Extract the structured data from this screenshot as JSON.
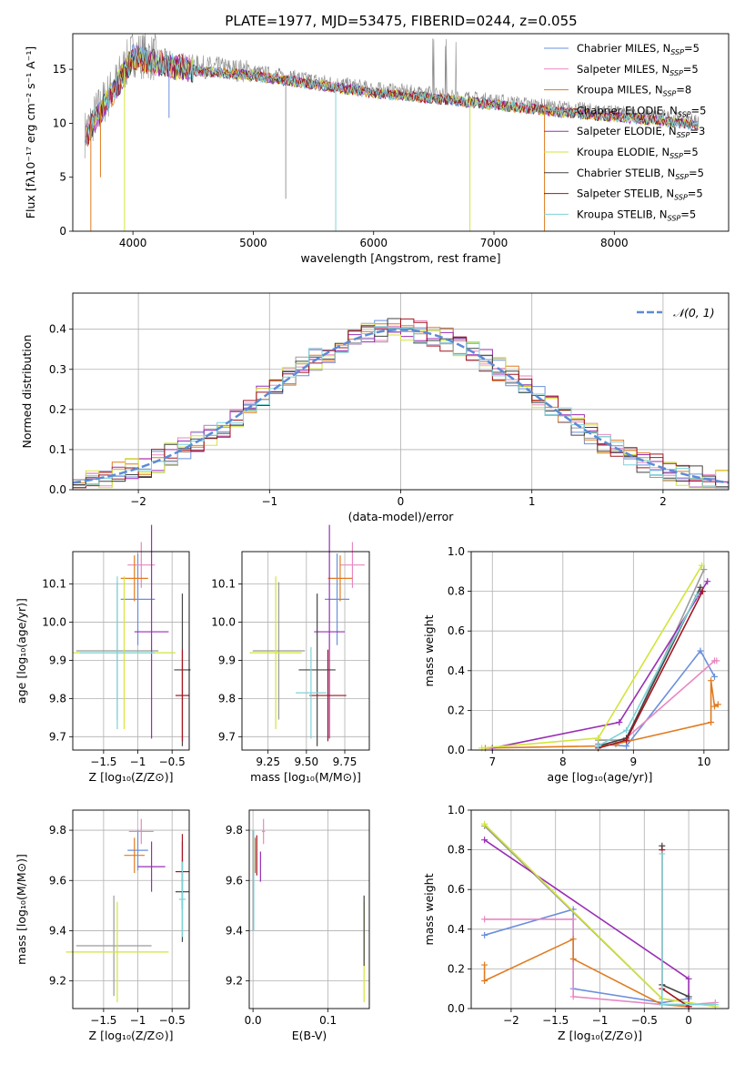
{
  "figure_title": "PLATE=1977, MJD=53475, FIBERID=0244, z=0.055",
  "colors": {
    "Chabrier MILES": "#6a8fdc",
    "Salpeter MILES": "#e887c2",
    "Kroupa MILES": "#e07b1f",
    "Chabrier ELODIE": "#9b9b9b",
    "Salpeter ELODIE": "#9a2eb5",
    "Kroupa ELODIE": "#d2e53a",
    "Chabrier STELIB": "#444444",
    "Salpeter STELIB": "#a3151e",
    "Kroupa STELIB": "#7dd3d8"
  },
  "legend_labels": [
    {
      "name": "Chabrier MILES",
      "pre": "Chabrier MILES, N",
      "sub": "SSP",
      "post": "=5"
    },
    {
      "name": "Salpeter MILES",
      "pre": "Salpeter MILES, N",
      "sub": "SSP",
      "post": "=5"
    },
    {
      "name": "Kroupa MILES",
      "pre": "Kroupa MILES, N",
      "sub": "SSP",
      "post": "=8"
    },
    {
      "name": "Chabrier ELODIE",
      "pre": "Chabrier ELODIE, N",
      "sub": "SSP",
      "post": "=5"
    },
    {
      "name": "Salpeter ELODIE",
      "pre": "Salpeter ELODIE, N",
      "sub": "SSP",
      "post": "=3"
    },
    {
      "name": "Kroupa ELODIE",
      "pre": "Kroupa ELODIE, N",
      "sub": "SSP",
      "post": "=5"
    },
    {
      "name": "Chabrier STELIB",
      "pre": "Chabrier STELIB, N",
      "sub": "SSP",
      "post": "=5"
    },
    {
      "name": "Salpeter STELIB",
      "pre": "Salpeter STELIB, N",
      "sub": "SSP",
      "post": "=5"
    },
    {
      "name": "Kroupa STELIB",
      "pre": "Kroupa STELIB, N",
      "sub": "SSP",
      "post": "=5"
    }
  ],
  "chart_data": [
    {
      "id": "spectrum",
      "type": "line",
      "xlabel": "wavelength [Angstrom, rest frame]",
      "ylabel": "Flux [fλ10⁻¹⁷ erg cm⁻² s⁻¹ A⁻¹]",
      "xlim": [
        3500,
        8950
      ],
      "ylim": [
        0,
        18.3
      ],
      "xticks": [
        4000,
        5000,
        6000,
        7000,
        8000
      ],
      "yticks": [
        0,
        5,
        10,
        15
      ],
      "grid": false,
      "legend": "upper-right",
      "continuum_x": [
        3600,
        3700,
        3850,
        4000,
        4200,
        4500,
        5000,
        5500,
        6000,
        6500,
        7000,
        7500,
        8000,
        8400,
        8700
      ],
      "continuum_y": [
        9.0,
        11.0,
        13.5,
        16.5,
        16.0,
        15.3,
        14.8,
        14.0,
        13.2,
        12.7,
        12.1,
        11.5,
        11.0,
        10.6,
        10.2
      ],
      "absorption_lines": [
        {
          "x": 3650,
          "y": 0.0,
          "series": "Kroupa MILES"
        },
        {
          "x": 3730,
          "y": 5.0,
          "series": "Kroupa MILES"
        },
        {
          "x": 3930,
          "y": 0.0,
          "series": "Kroupa ELODIE"
        },
        {
          "x": 4300,
          "y": 10.5,
          "series": "Chabrier MILES"
        },
        {
          "x": 5270,
          "y": 3.0,
          "series": "Chabrier ELODIE"
        },
        {
          "x": 5685,
          "y": 0.0,
          "series": "Kroupa STELIB"
        },
        {
          "x": 6800,
          "y": 0.0,
          "series": "Kroupa ELODIE"
        },
        {
          "x": 7420,
          "y": 0.0,
          "series": "Kroupa MILES"
        }
      ]
    },
    {
      "id": "residuals",
      "type": "line",
      "xlabel": "(data-model)/error",
      "ylabel": "Normed distribution",
      "xlim": [
        -2.5,
        2.5
      ],
      "ylim": [
        0,
        0.49
      ],
      "xticks": [
        -2,
        -1,
        0,
        1,
        2
      ],
      "yticks": [
        0.0,
        0.1,
        0.2,
        0.3,
        0.4
      ],
      "grid": true,
      "legend": "upper-right",
      "reference_label": "𝒩(0, 1)",
      "series_curve": "N(0,1)"
    },
    {
      "id": "age-vs-Z",
      "type": "scatter",
      "xlabel": "Z [log₁₀(Z/Z⊙)]",
      "ylabel": "age  [log₁₀(age/yr)]",
      "xlim": [
        -1.95,
        -0.25
      ],
      "ylim": [
        9.665,
        10.185
      ],
      "xticks": [
        -1.5,
        -1.0,
        -0.5
      ],
      "yticks": [
        9.7,
        9.8,
        9.9,
        10.0,
        10.1
      ],
      "grid": true,
      "points": [
        {
          "series": "Chabrier MILES",
          "x": -1.0,
          "y": 10.06,
          "xerr": 0.25,
          "yerr": 0.12
        },
        {
          "series": "Salpeter MILES",
          "x": -0.95,
          "y": 10.15,
          "xerr": 0.2,
          "yerr": 0.06
        },
        {
          "series": "Kroupa MILES",
          "x": -1.05,
          "y": 10.115,
          "xerr": 0.2,
          "yerr": 0.06
        },
        {
          "series": "Chabrier ELODIE",
          "x": -1.3,
          "y": 9.925,
          "xerr": 0.6,
          "yerr": 0.18
        },
        {
          "series": "Salpeter ELODIE",
          "x": -0.8,
          "y": 9.975,
          "xerr": 0.25,
          "yerr": 0.28
        },
        {
          "series": "Kroupa ELODIE",
          "x": -1.2,
          "y": 9.92,
          "xerr": 0.75,
          "yerr": 0.2
        },
        {
          "series": "Chabrier STELIB",
          "x": -0.35,
          "y": 9.875,
          "xerr": 0.12,
          "yerr": 0.2
        },
        {
          "series": "Salpeter STELIB",
          "x": -0.35,
          "y": 9.808,
          "xerr": 0.1,
          "yerr": 0.12
        },
        {
          "series": "Kroupa STELIB",
          "x": -1.3,
          "y": 9.92,
          "xerr": 0.55,
          "yerr": 0.2
        }
      ]
    },
    {
      "id": "age-vs-mass",
      "type": "scatter",
      "xlabel": "mass [log₁₀(M/M⊙)]",
      "ylabel": "",
      "xlim": [
        9.08,
        9.91
      ],
      "ylim": [
        9.665,
        10.185
      ],
      "xticks": [
        9.25,
        9.5,
        9.75
      ],
      "xticklabels": [
        "9.25",
        "9.50",
        "9.75"
      ],
      "yticks": [
        9.7,
        9.8,
        9.9,
        10.0,
        10.1
      ],
      "grid": true,
      "points": [
        {
          "series": "Chabrier MILES",
          "x": 9.7,
          "y": 10.06,
          "xerr": 0.08,
          "yerr": 0.12
        },
        {
          "series": "Salpeter MILES",
          "x": 9.8,
          "y": 10.15,
          "xerr": 0.08,
          "yerr": 0.06
        },
        {
          "series": "Kroupa MILES",
          "x": 9.72,
          "y": 10.115,
          "xerr": 0.08,
          "yerr": 0.06
        },
        {
          "series": "Chabrier ELODIE",
          "x": 9.32,
          "y": 9.925,
          "xerr": 0.17,
          "yerr": 0.18
        },
        {
          "series": "Salpeter ELODIE",
          "x": 9.65,
          "y": 9.975,
          "xerr": 0.1,
          "yerr": 0.28
        },
        {
          "series": "Kroupa ELODIE",
          "x": 9.3,
          "y": 9.92,
          "xerr": 0.17,
          "yerr": 0.2
        },
        {
          "series": "Chabrier STELIB",
          "x": 9.57,
          "y": 9.875,
          "xerr": 0.12,
          "yerr": 0.2
        },
        {
          "series": "Salpeter STELIB",
          "x": 9.64,
          "y": 9.808,
          "xerr": 0.12,
          "yerr": 0.12
        },
        {
          "series": "Kroupa STELIB",
          "x": 9.53,
          "y": 9.815,
          "xerr": 0.1,
          "yerr": 0.12
        }
      ]
    },
    {
      "id": "mass-weight-vs-age",
      "type": "line",
      "xlabel": "age  [log₁₀(age/yr)]",
      "ylabel": "mass weight",
      "xlim": [
        6.7,
        10.35
      ],
      "ylim": [
        0,
        1.0
      ],
      "xticks": [
        7,
        8,
        9,
        10
      ],
      "yticks": [
        0.0,
        0.2,
        0.4,
        0.6,
        0.8,
        1.0
      ],
      "grid": true,
      "series": [
        {
          "name": "Chabrier MILES",
          "x": [
            8.5,
            8.9,
            9.95,
            10.15
          ],
          "y": [
            0.03,
            0.02,
            0.5,
            0.37
          ]
        },
        {
          "name": "Salpeter MILES",
          "x": [
            8.5,
            8.9,
            10.15,
            10.18
          ],
          "y": [
            0.02,
            0.06,
            0.45,
            0.45
          ]
        },
        {
          "name": "Kroupa MILES",
          "x": [
            6.9,
            8.5,
            8.75,
            10.1,
            10.1,
            10.15,
            10.2
          ],
          "y": [
            0.01,
            0.02,
            0.03,
            0.14,
            0.35,
            0.22,
            0.23
          ]
        },
        {
          "name": "Chabrier ELODIE",
          "x": [
            8.5,
            8.9,
            10.0
          ],
          "y": [
            0.05,
            0.05,
            0.91
          ]
        },
        {
          "name": "Salpeter ELODIE",
          "x": [
            7.0,
            8.8,
            10.05
          ],
          "y": [
            0.01,
            0.14,
            0.85
          ]
        },
        {
          "name": "Kroupa ELODIE",
          "x": [
            6.85,
            8.5,
            9.97
          ],
          "y": [
            0.01,
            0.06,
            0.93
          ]
        },
        {
          "name": "Chabrier STELIB",
          "x": [
            8.5,
            8.9,
            9.95
          ],
          "y": [
            0.02,
            0.06,
            0.82
          ]
        },
        {
          "name": "Salpeter STELIB",
          "x": [
            8.5,
            8.9,
            9.98
          ],
          "y": [
            0.01,
            0.05,
            0.8
          ]
        },
        {
          "name": "Kroupa STELIB",
          "x": [
            8.5,
            8.9,
            9.9
          ],
          "y": [
            0.02,
            0.1,
            0.78
          ]
        }
      ]
    },
    {
      "id": "mass-vs-Z",
      "type": "scatter",
      "xlabel": "Z [log₁₀(Z/Z⊙)]",
      "ylabel": "mass [log₁₀(M/M⊙)]",
      "xlim": [
        -1.95,
        -0.25
      ],
      "ylim": [
        9.09,
        9.88
      ],
      "xticks": [
        -1.5,
        -1.0,
        -0.5
      ],
      "yticks": [
        9.2,
        9.4,
        9.6,
        9.8
      ],
      "grid": true,
      "points": [
        {
          "series": "Chabrier MILES",
          "x": -1.0,
          "y": 9.72,
          "xerr": 0.15,
          "yerr": 0.08
        },
        {
          "series": "Salpeter MILES",
          "x": -0.95,
          "y": 9.795,
          "xerr": 0.18,
          "yerr": 0.05
        },
        {
          "series": "Kroupa MILES",
          "x": -1.05,
          "y": 9.7,
          "xerr": 0.15,
          "yerr": 0.07
        },
        {
          "series": "Chabrier ELODIE",
          "x": -1.35,
          "y": 9.34,
          "xerr": 0.55,
          "yerr": 0.2
        },
        {
          "series": "Salpeter ELODIE",
          "x": -0.8,
          "y": 9.655,
          "xerr": 0.2,
          "yerr": 0.1
        },
        {
          "series": "Kroupa ELODIE",
          "x": -1.3,
          "y": 9.315,
          "xerr": 0.75,
          "yerr": 0.2
        },
        {
          "series": "Chabrier STELIB",
          "x": -0.35,
          "y": 9.555,
          "xerr": 0.1,
          "yerr": 0.2
        },
        {
          "series": "Salpeter STELIB",
          "x": -0.35,
          "y": 9.635,
          "xerr": 0.1,
          "yerr": 0.15
        },
        {
          "series": "Kroupa STELIB",
          "x": -0.35,
          "y": 9.525,
          "xerr": 0.05,
          "yerr": 0.15
        }
      ]
    },
    {
      "id": "mass-vs-EBV",
      "type": "scatter",
      "xlabel": "E(B-V)",
      "ylabel": "",
      "xlim": [
        -0.005,
        0.155
      ],
      "ylim": [
        9.09,
        9.88
      ],
      "xticks": [
        0.0,
        0.1
      ],
      "yticks": [
        9.2,
        9.4,
        9.6,
        9.8
      ],
      "grid": true,
      "points": [
        {
          "series": "Chabrier MILES",
          "x": 0.0,
          "y": 9.72,
          "xerr": 0.0,
          "yerr": 0.08
        },
        {
          "series": "Salpeter MILES",
          "x": 0.014,
          "y": 9.795,
          "xerr": 0.002,
          "yerr": 0.05
        },
        {
          "series": "Kroupa MILES",
          "x": 0.003,
          "y": 9.7,
          "xerr": 0.0,
          "yerr": 0.07
        },
        {
          "series": "Chabrier ELODIE",
          "x": 0.0,
          "y": 9.6,
          "xerr": 0.0,
          "yerr": 0.2
        },
        {
          "series": "Salpeter ELODIE",
          "x": 0.01,
          "y": 9.655,
          "xerr": 0.0,
          "yerr": 0.06
        },
        {
          "series": "Kroupa ELODIE",
          "x": 0.148,
          "y": 9.315,
          "xerr": 0.0,
          "yerr": 0.2
        },
        {
          "series": "Chabrier STELIB",
          "x": 0.148,
          "y": 9.4,
          "xerr": 0.0,
          "yerr": 0.14
        },
        {
          "series": "Salpeter STELIB",
          "x": 0.005,
          "y": 9.7,
          "xerr": 0.0,
          "yerr": 0.08
        },
        {
          "series": "Kroupa STELIB",
          "x": 0.001,
          "y": 9.6,
          "xerr": 0.0,
          "yerr": 0.2
        }
      ]
    },
    {
      "id": "mass-weight-vs-Z",
      "type": "line",
      "xlabel": "Z [log₁₀(Z/Z⊙)]",
      "ylabel": "mass weight",
      "xlim": [
        -2.45,
        0.45
      ],
      "ylim": [
        0,
        1.0
      ],
      "xticks": [
        -2.0,
        -1.5,
        -1.0,
        -0.5,
        0.0
      ],
      "yticks": [
        0.0,
        0.2,
        0.4,
        0.6,
        0.8,
        1.0
      ],
      "grid": true,
      "series": [
        {
          "name": "Chabrier MILES",
          "x": [
            -2.3,
            -1.3,
            -1.3,
            -0.3,
            0.0
          ],
          "y": [
            0.37,
            0.5,
            0.1,
            0.03,
            0.05
          ]
        },
        {
          "name": "Salpeter MILES",
          "x": [
            -2.3,
            -1.3,
            -1.3,
            -0.3,
            0.0,
            0.3
          ],
          "y": [
            0.45,
            0.45,
            0.06,
            0.02,
            0.02,
            0.03
          ]
        },
        {
          "name": "Kroupa MILES",
          "x": [
            -2.3,
            -2.3,
            -1.3,
            -1.3,
            -0.3,
            0.0
          ],
          "y": [
            0.22,
            0.14,
            0.35,
            0.25,
            0.02,
            0.01
          ]
        },
        {
          "name": "Chabrier ELODIE",
          "x": [
            -2.3,
            -0.3,
            0.0
          ],
          "y": [
            0.92,
            0.05,
            0.03
          ]
        },
        {
          "name": "Salpeter ELODIE",
          "x": [
            -2.3,
            0.0,
            0.0
          ],
          "y": [
            0.85,
            0.15,
            0.01
          ]
        },
        {
          "name": "Kroupa ELODIE",
          "x": [
            -2.3,
            -0.3,
            0.3
          ],
          "y": [
            0.93,
            0.05,
            0.01
          ]
        },
        {
          "name": "Chabrier STELIB",
          "x": [
            -0.3,
            -0.3,
            0.0
          ],
          "y": [
            0.82,
            0.12,
            0.06
          ]
        },
        {
          "name": "Salpeter STELIB",
          "x": [
            -0.3,
            -0.3,
            0.0
          ],
          "y": [
            0.8,
            0.1,
            0.01
          ]
        },
        {
          "name": "Kroupa STELIB",
          "x": [
            -0.3,
            -0.3,
            0.3
          ],
          "y": [
            0.78,
            0.02,
            0.02
          ]
        }
      ]
    }
  ]
}
